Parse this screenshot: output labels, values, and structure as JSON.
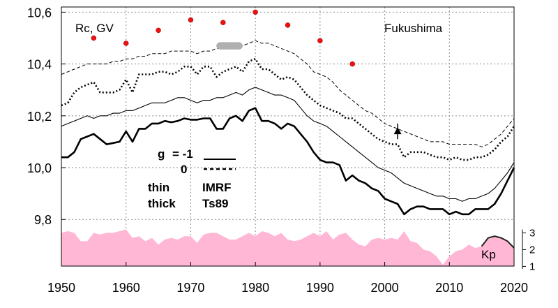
{
  "chart_data": {
    "type": "line",
    "annotations": {
      "ylabel": "Rc, GV",
      "station": "Fukushima",
      "kp_label": "Kp"
    },
    "legend": {
      "g_label": "g",
      "g_minus1": "= -1",
      "g_zero": "0",
      "thin": "thin",
      "thick": "thick",
      "imrf": "IMRF",
      "ts89": "Ts89"
    },
    "xlim": [
      1950,
      2020
    ],
    "ylim": [
      9.62,
      10.62
    ],
    "x_ticks": [
      "1950",
      "1960",
      "1970",
      "1980",
      "1990",
      "2000",
      "2010",
      "2020"
    ],
    "y_ticks": [
      "10,6",
      "10,4",
      "10,2",
      "10,0",
      "9,8"
    ],
    "kp_axis": {
      "ticks": [
        "3",
        "2",
        "1"
      ],
      "range": [
        1,
        3
      ]
    },
    "grid": true,
    "colors": {
      "red_points": "#ee1111",
      "kp_fill": "#ffb7d5",
      "kp_line": "#222222",
      "gray_band": "#b0b0b0"
    },
    "series": [
      {
        "style": "thick-solid",
        "x": [
          1950,
          1951,
          1952,
          1953,
          1954,
          1955,
          1956,
          1957,
          1958,
          1959,
          1960,
          1961,
          1962,
          1963,
          1964,
          1965,
          1966,
          1967,
          1968,
          1969,
          1970,
          1971,
          1972,
          1973,
          1974,
          1975,
          1976,
          1977,
          1978,
          1979,
          1980,
          1981,
          1982,
          1983,
          1984,
          1985,
          1986,
          1987,
          1988,
          1989,
          1990,
          1991,
          1992,
          1993,
          1994,
          1995,
          1996,
          1997,
          1998,
          1999,
          2000,
          2001,
          2002,
          2003,
          2004,
          2005,
          2006,
          2007,
          2008,
          2009,
          2010,
          2011,
          2012,
          2013,
          2014,
          2015,
          2016,
          2017,
          2018,
          2019,
          2020
        ],
        "y": [
          10.04,
          10.04,
          10.06,
          10.11,
          10.12,
          10.13,
          10.11,
          10.09,
          10.095,
          10.1,
          10.14,
          10.1,
          10.15,
          10.15,
          10.17,
          10.17,
          10.18,
          10.175,
          10.18,
          10.19,
          10.185,
          10.185,
          10.19,
          10.19,
          10.15,
          10.15,
          10.19,
          10.2,
          10.18,
          10.22,
          10.23,
          10.18,
          10.18,
          10.17,
          10.15,
          10.17,
          10.16,
          10.13,
          10.1,
          10.06,
          10.03,
          10.02,
          10.02,
          10.01,
          9.95,
          9.97,
          9.95,
          9.94,
          9.92,
          9.91,
          9.88,
          9.87,
          9.86,
          9.82,
          9.84,
          9.85,
          9.85,
          9.84,
          9.84,
          9.84,
          9.82,
          9.83,
          9.82,
          9.82,
          9.84,
          9.84,
          9.84,
          9.86,
          9.9,
          9.95,
          10.0
        ]
      },
      {
        "style": "thin-solid",
        "x": [
          1950,
          1951,
          1952,
          1953,
          1954,
          1955,
          1956,
          1957,
          1958,
          1959,
          1960,
          1961,
          1962,
          1963,
          1964,
          1965,
          1966,
          1967,
          1968,
          1969,
          1970,
          1971,
          1972,
          1973,
          1974,
          1975,
          1976,
          1977,
          1978,
          1979,
          1980,
          1981,
          1982,
          1983,
          1984,
          1985,
          1986,
          1987,
          1988,
          1989,
          1990,
          1991,
          1992,
          1993,
          1994,
          1995,
          1996,
          1997,
          1998,
          1999,
          2000,
          2001,
          2002,
          2003,
          2004,
          2005,
          2006,
          2007,
          2008,
          2009,
          2010,
          2011,
          2012,
          2013,
          2014,
          2015,
          2016,
          2017,
          2018,
          2019,
          2020
        ],
        "y": [
          10.16,
          10.17,
          10.18,
          10.19,
          10.2,
          10.19,
          10.2,
          10.2,
          10.21,
          10.21,
          10.22,
          10.22,
          10.23,
          10.24,
          10.25,
          10.25,
          10.25,
          10.26,
          10.27,
          10.27,
          10.26,
          10.25,
          10.26,
          10.26,
          10.27,
          10.27,
          10.28,
          10.29,
          10.28,
          10.3,
          10.31,
          10.3,
          10.29,
          10.28,
          10.28,
          10.27,
          10.26,
          10.23,
          10.2,
          10.18,
          10.17,
          10.16,
          10.14,
          10.12,
          10.1,
          10.08,
          10.06,
          10.04,
          10.02,
          10.0,
          9.99,
          9.98,
          9.96,
          9.94,
          9.93,
          9.92,
          9.91,
          9.9,
          9.89,
          9.89,
          9.88,
          9.88,
          9.87,
          9.88,
          9.88,
          9.89,
          9.9,
          9.92,
          9.95,
          9.98,
          10.02
        ]
      },
      {
        "style": "thick-dotted",
        "x": [
          1950,
          1951,
          1952,
          1953,
          1954,
          1955,
          1956,
          1957,
          1958,
          1959,
          1960,
          1961,
          1962,
          1963,
          1964,
          1965,
          1966,
          1967,
          1968,
          1969,
          1970,
          1971,
          1972,
          1973,
          1974,
          1975,
          1976,
          1977,
          1978,
          1979,
          1980,
          1981,
          1982,
          1983,
          1984,
          1985,
          1986,
          1987,
          1988,
          1989,
          1990,
          1991,
          1992,
          1993,
          1994,
          1995,
          1996,
          1997,
          1998,
          1999,
          2000,
          2001,
          2002,
          2003,
          2004,
          2005,
          2006,
          2007,
          2008,
          2009,
          2010,
          2011,
          2012,
          2013,
          2014,
          2015,
          2016,
          2017,
          2018,
          2019,
          2020
        ],
        "y": [
          10.24,
          10.25,
          10.29,
          10.31,
          10.32,
          10.33,
          10.29,
          10.29,
          10.29,
          10.3,
          10.34,
          10.29,
          10.36,
          10.36,
          10.36,
          10.37,
          10.37,
          10.36,
          10.37,
          10.39,
          10.39,
          10.36,
          10.39,
          10.39,
          10.35,
          10.37,
          10.38,
          10.39,
          10.37,
          10.41,
          10.42,
          10.38,
          10.38,
          10.36,
          10.34,
          10.35,
          10.34,
          10.31,
          10.28,
          10.26,
          10.24,
          10.23,
          10.22,
          10.21,
          10.19,
          10.19,
          10.17,
          10.15,
          10.13,
          10.11,
          10.1,
          10.09,
          10.09,
          10.04,
          10.06,
          10.06,
          10.06,
          10.05,
          10.04,
          10.04,
          10.03,
          10.04,
          10.03,
          10.03,
          10.04,
          10.04,
          10.05,
          10.07,
          10.1,
          10.12,
          10.16
        ]
      },
      {
        "style": "thin-dashed",
        "x": [
          1950,
          1951,
          1952,
          1953,
          1954,
          1955,
          1956,
          1957,
          1958,
          1959,
          1960,
          1961,
          1962,
          1963,
          1964,
          1965,
          1966,
          1967,
          1968,
          1969,
          1970,
          1971,
          1972,
          1973,
          1974,
          1975,
          1976,
          1977,
          1978,
          1979,
          1980,
          1981,
          1982,
          1983,
          1984,
          1985,
          1986,
          1987,
          1988,
          1989,
          1990,
          1991,
          1992,
          1993,
          1994,
          1995,
          1996,
          1997,
          1998,
          1999,
          2000,
          2001,
          2002,
          2003,
          2004,
          2005,
          2006,
          2007,
          2008,
          2009,
          2010,
          2011,
          2012,
          2013,
          2014,
          2015,
          2016,
          2017,
          2018,
          2019,
          2020
        ],
        "y": [
          10.36,
          10.37,
          10.38,
          10.39,
          10.4,
          10.4,
          10.4,
          10.4,
          10.41,
          10.41,
          10.42,
          10.42,
          10.43,
          10.43,
          10.44,
          10.44,
          10.44,
          10.45,
          10.45,
          10.45,
          10.45,
          10.44,
          10.45,
          10.45,
          10.46,
          10.46,
          10.47,
          10.47,
          10.47,
          10.48,
          10.49,
          10.48,
          10.48,
          10.47,
          10.46,
          10.45,
          10.44,
          10.42,
          10.4,
          10.37,
          10.36,
          10.35,
          10.33,
          10.3,
          10.28,
          10.26,
          10.24,
          10.22,
          10.21,
          10.19,
          10.17,
          10.16,
          10.15,
          10.14,
          10.13,
          10.12,
          10.11,
          10.1,
          10.1,
          10.1,
          10.09,
          10.09,
          10.09,
          10.09,
          10.09,
          10.08,
          10.09,
          10.11,
          10.13,
          10.16,
          10.19
        ]
      }
    ],
    "points": {
      "x": [
        1955,
        1960,
        1965,
        1970,
        1975,
        1980,
        1985,
        1990,
        1995
      ],
      "y": [
        10.5,
        10.48,
        10.53,
        10.57,
        10.56,
        10.6,
        10.55,
        10.49,
        10.4
      ]
    },
    "triangle": {
      "x": 2002,
      "y": 10.14,
      "y_err": 0.015
    },
    "gray_band": {
      "x": [
        1974,
        1978
      ],
      "y": [
        10.465,
        10.475
      ]
    },
    "kp": {
      "x": [
        1950,
        1951,
        1952,
        1953,
        1954,
        1955,
        1956,
        1957,
        1958,
        1959,
        1960,
        1961,
        1962,
        1963,
        1964,
        1965,
        1966,
        1967,
        1968,
        1969,
        1970,
        1971,
        1972,
        1973,
        1974,
        1975,
        1976,
        1977,
        1978,
        1979,
        1980,
        1981,
        1982,
        1983,
        1984,
        1985,
        1986,
        1987,
        1988,
        1989,
        1990,
        1991,
        1992,
        1993,
        1994,
        1995,
        1996,
        1997,
        1998,
        1999,
        2000,
        2001,
        2002,
        2003,
        2004,
        2005,
        2006,
        2007,
        2008,
        2009,
        2010,
        2011,
        2012,
        2013,
        2014,
        2015,
        2016,
        2017,
        2018,
        2019,
        2020
      ],
      "values": [
        3.0,
        3.1,
        3.0,
        2.5,
        2.5,
        3.0,
        2.9,
        3.0,
        3.0,
        3.1,
        3.2,
        2.7,
        2.8,
        2.5,
        2.7,
        2.3,
        2.6,
        2.7,
        2.6,
        2.8,
        2.8,
        2.4,
        2.9,
        3.0,
        3.0,
        2.8,
        2.6,
        2.6,
        2.8,
        3.0,
        2.8,
        3.1,
        3.0,
        2.8,
        3.0,
        2.6,
        2.5,
        2.6,
        2.8,
        3.0,
        2.8,
        3.1,
        2.6,
        2.9,
        3.0,
        2.6,
        2.3,
        2.2,
        2.6,
        2.7,
        2.6,
        2.7,
        2.6,
        3.1,
        2.5,
        2.4,
        2.0,
        1.9,
        1.6,
        1.1,
        1.6,
        1.9,
        2.0,
        2.3,
        2.1,
        2.2,
        2.7,
        2.8,
        2.7,
        2.5,
        2.1
      ]
    }
  }
}
